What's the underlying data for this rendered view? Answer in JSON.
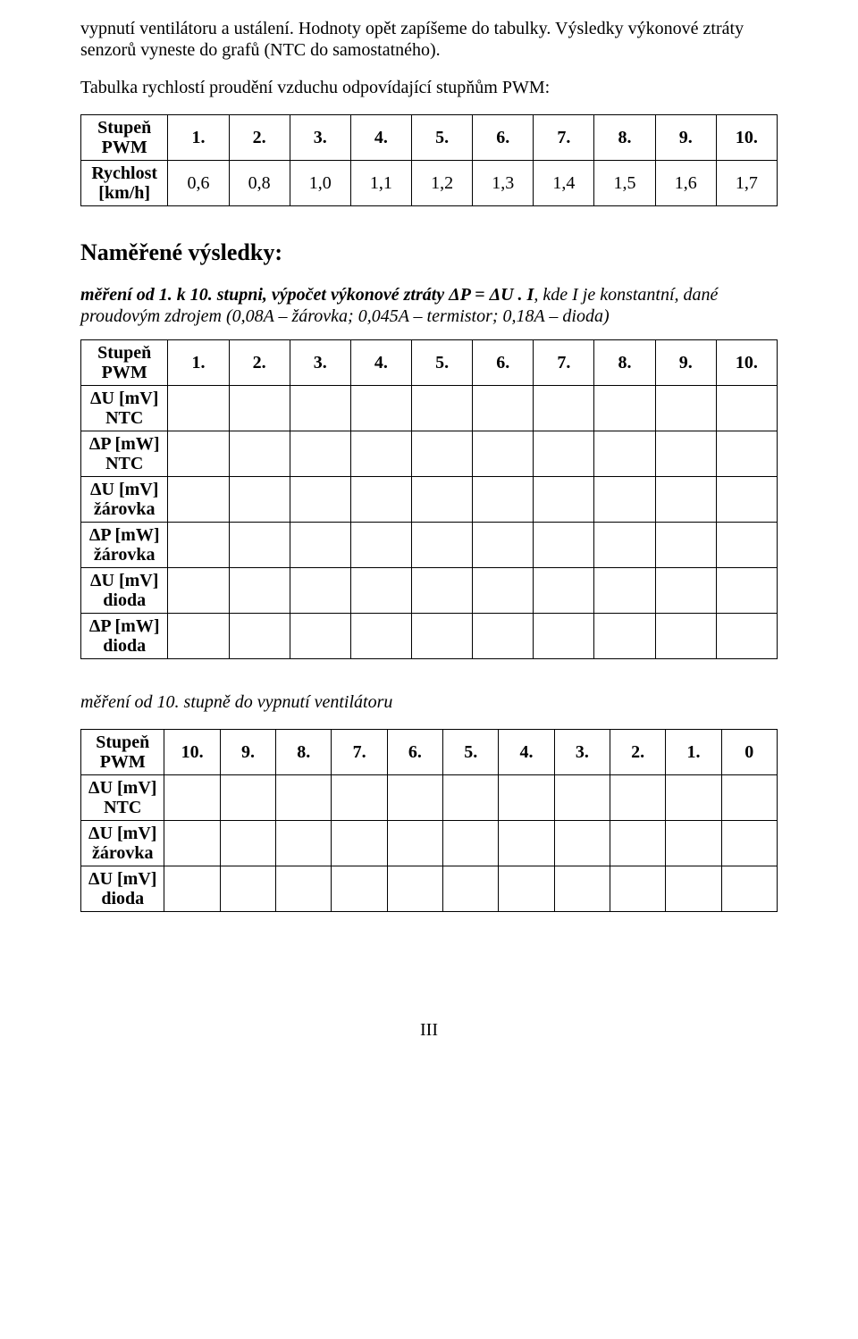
{
  "intro": {
    "p1": "vypnutí ventilátoru a ustálení. Hodnoty opět zapíšeme do tabulky. Výsledky výkonové ztráty senzorů vyneste do grafů (NTC do samostatného).",
    "p2": "Tabulka rychlostí proudění vzduchu odpovídající stupňům PWM:"
  },
  "table1": {
    "row1_head": "Stupeň PWM",
    "row2_head": "Rychlost [km/h]",
    "cols_top": [
      "1.",
      "2.",
      "3.",
      "4.",
      "5.",
      "6.",
      "7.",
      "8.",
      "9.",
      "10."
    ],
    "cols_bot": [
      "0,6",
      "0,8",
      "1,0",
      "1,1",
      "1,2",
      "1,3",
      "1,4",
      "1,5",
      "1,6",
      "1,7"
    ]
  },
  "results_heading": "Naměřené výsledky:",
  "note1_a": "měření od 1. k 10. stupni, výpočet výkonové ztráty ΔP = ΔU . I",
  "note1_b": ", kde I je konstantní, dané proudovým zdrojem (0,08A – žárovka; 0,045A – termistor; 0,18A – dioda)",
  "table2": {
    "rowheads": [
      "Stupeň PWM",
      "ΔU [mV] NTC",
      "ΔP [mW] NTC",
      "ΔU [mV] žárovka",
      "ΔP [mW] žárovka",
      "ΔU [mV] dioda",
      "ΔP [mW] dioda"
    ],
    "cols": [
      "1.",
      "2.",
      "3.",
      "4.",
      "5.",
      "6.",
      "7.",
      "8.",
      "9.",
      "10."
    ]
  },
  "note2": "měření od 10. stupně do vypnutí ventilátoru",
  "table3": {
    "rowheads": [
      "Stupeň PWM",
      "ΔU [mV] NTC",
      "ΔU [mV] žárovka",
      "ΔU [mV] dioda"
    ],
    "cols": [
      "10.",
      "9.",
      "8.",
      "7.",
      "6.",
      "5.",
      "4.",
      "3.",
      "2.",
      "1.",
      "0"
    ]
  },
  "page_number": "III"
}
